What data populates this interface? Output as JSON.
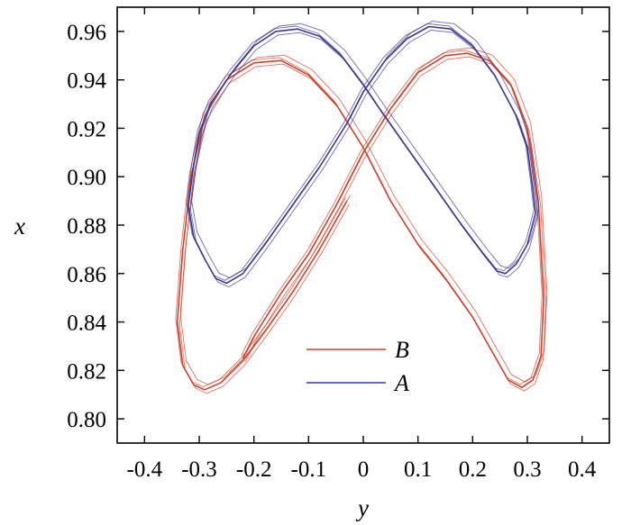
{
  "chart_data": {
    "type": "line",
    "title": "",
    "xlabel": "y",
    "ylabel": "x",
    "xlim": [
      -0.45,
      0.45
    ],
    "ylim": [
      0.79,
      0.97
    ],
    "x_ticks": [
      "-0.4",
      "-0.3",
      "-0.2",
      "-0.1",
      "0",
      "0.1",
      "0.2",
      "0.3",
      "0.4"
    ],
    "y_ticks": [
      "0.80",
      "0.82",
      "0.84",
      "0.86",
      "0.88",
      "0.90",
      "0.92",
      "0.94",
      "0.96"
    ],
    "grid": false,
    "legend_position": "lower-center",
    "series": [
      {
        "name": "B",
        "color": "#d2412a",
        "points": [
          [
            -0.22,
            0.825
          ],
          [
            -0.2,
            0.834
          ],
          [
            -0.15,
            0.852
          ],
          [
            -0.1,
            0.868
          ],
          [
            -0.05,
            0.888
          ],
          [
            0.0,
            0.91
          ],
          [
            0.05,
            0.928
          ],
          [
            0.1,
            0.943
          ],
          [
            0.15,
            0.95
          ],
          [
            0.19,
            0.951
          ],
          [
            0.23,
            0.948
          ],
          [
            0.27,
            0.938
          ],
          [
            0.3,
            0.92
          ],
          [
            0.32,
            0.89
          ],
          [
            0.33,
            0.85
          ],
          [
            0.325,
            0.826
          ],
          [
            0.31,
            0.816
          ],
          [
            0.29,
            0.813
          ],
          [
            0.265,
            0.816
          ],
          [
            0.24,
            0.826
          ],
          [
            0.2,
            0.842
          ],
          [
            0.15,
            0.858
          ],
          [
            0.1,
            0.872
          ],
          [
            0.05,
            0.89
          ],
          [
            0.0,
            0.912
          ],
          [
            -0.05,
            0.93
          ],
          [
            -0.1,
            0.942
          ],
          [
            -0.15,
            0.948
          ],
          [
            -0.2,
            0.947
          ],
          [
            -0.25,
            0.94
          ],
          [
            -0.29,
            0.925
          ],
          [
            -0.315,
            0.9
          ],
          [
            -0.33,
            0.87
          ],
          [
            -0.34,
            0.84
          ],
          [
            -0.33,
            0.822
          ],
          [
            -0.31,
            0.814
          ],
          [
            -0.29,
            0.812
          ],
          [
            -0.26,
            0.815
          ],
          [
            -0.22,
            0.824
          ],
          [
            -0.18,
            0.836
          ],
          [
            -0.13,
            0.852
          ],
          [
            -0.08,
            0.87
          ],
          [
            -0.03,
            0.89
          ]
        ]
      },
      {
        "name": "A",
        "color": "#3a3a95",
        "points": [
          [
            -0.32,
            0.888
          ],
          [
            -0.31,
            0.875
          ],
          [
            -0.29,
            0.866
          ],
          [
            -0.27,
            0.858
          ],
          [
            -0.25,
            0.856
          ],
          [
            -0.22,
            0.86
          ],
          [
            -0.18,
            0.872
          ],
          [
            -0.13,
            0.888
          ],
          [
            -0.08,
            0.904
          ],
          [
            -0.03,
            0.922
          ],
          [
            0.0,
            0.935
          ],
          [
            0.04,
            0.948
          ],
          [
            0.08,
            0.957
          ],
          [
            0.12,
            0.962
          ],
          [
            0.16,
            0.961
          ],
          [
            0.2,
            0.954
          ],
          [
            0.24,
            0.942
          ],
          [
            0.28,
            0.925
          ],
          [
            0.3,
            0.912
          ],
          [
            0.31,
            0.895
          ],
          [
            0.315,
            0.885
          ],
          [
            0.3,
            0.872
          ],
          [
            0.28,
            0.864
          ],
          [
            0.26,
            0.86
          ],
          [
            0.245,
            0.861
          ],
          [
            0.22,
            0.868
          ],
          [
            0.18,
            0.88
          ],
          [
            0.13,
            0.896
          ],
          [
            0.08,
            0.912
          ],
          [
            0.03,
            0.928
          ],
          [
            0.0,
            0.938
          ],
          [
            -0.04,
            0.95
          ],
          [
            -0.08,
            0.958
          ],
          [
            -0.12,
            0.961
          ],
          [
            -0.16,
            0.96
          ],
          [
            -0.2,
            0.954
          ],
          [
            -0.24,
            0.943
          ],
          [
            -0.28,
            0.93
          ],
          [
            -0.3,
            0.918
          ],
          [
            -0.31,
            0.905
          ],
          [
            -0.32,
            0.888
          ]
        ]
      }
    ]
  }
}
